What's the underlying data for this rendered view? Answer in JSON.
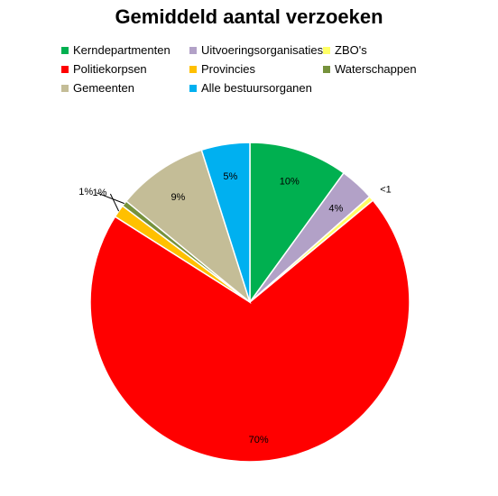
{
  "chart_data": {
    "type": "pie",
    "title": "Gemiddeld aantal verzoeken",
    "legend_position": "top",
    "categories": [
      "Kerndepartmenten",
      "Uitvoeringsorganisaties",
      "ZBO's",
      "Politiekorpsen",
      "Provincies",
      "Waterschappen",
      "Gemeenten",
      "Alle bestuursorganen"
    ],
    "values": [
      10,
      3.5,
      0.5,
      70,
      1.3,
      0.6,
      9.2,
      4.9
    ],
    "data_labels": [
      "10%",
      "4%",
      "<1",
      "70%",
      "1%",
      "1%",
      "9%",
      "5%"
    ],
    "colors": [
      "#00b050",
      "#b2a1c7",
      "#ffff66",
      "#ff0000",
      "#ffc000",
      "#76923c",
      "#c4bd97",
      "#00b0f0"
    ]
  }
}
